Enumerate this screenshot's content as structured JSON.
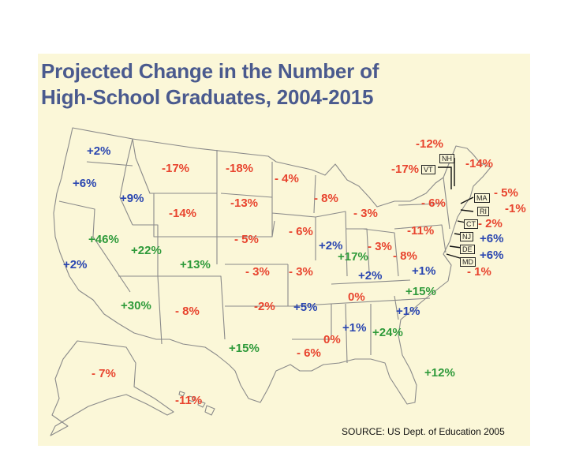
{
  "title_line1": "Projected Change in the Number of",
  "title_line2": "High-School Graduates, 2004-2015",
  "source": "SOURCE: US Dept. of Education 2005",
  "colors": {
    "background": "#fbf7d8",
    "title": "#4a5a8e",
    "decline": "#e8442e",
    "growth_green": "#2e9a3a",
    "growth_blue": "#2a46b0",
    "border": "#8a8a8a"
  },
  "states": [
    {
      "code": "WA",
      "value": "+2%"
    },
    {
      "code": "OR",
      "value": "+6%"
    },
    {
      "code": "CA",
      "value": "+2%"
    },
    {
      "code": "NV",
      "value": "+46%"
    },
    {
      "code": "ID",
      "value": "+9%"
    },
    {
      "code": "MT",
      "value": "-17%"
    },
    {
      "code": "WY",
      "value": "-14%"
    },
    {
      "code": "UT",
      "value": "+22%"
    },
    {
      "code": "CO",
      "value": "+13%"
    },
    {
      "code": "AZ",
      "value": "+30%"
    },
    {
      "code": "NM",
      "value": "- 8%"
    },
    {
      "code": "ND",
      "value": "-18%"
    },
    {
      "code": "SD",
      "value": "-13%"
    },
    {
      "code": "NE",
      "value": "- 5%"
    },
    {
      "code": "KS",
      "value": "- 3%"
    },
    {
      "code": "OK",
      "value": "-2%"
    },
    {
      "code": "TX",
      "value": "+15%"
    },
    {
      "code": "MN",
      "value": "- 4%"
    },
    {
      "code": "IA",
      "value": "- 6%"
    },
    {
      "code": "MO",
      "value": "- 3%"
    },
    {
      "code": "AR",
      "value": "+5%"
    },
    {
      "code": "LA",
      "value": "- 6%"
    },
    {
      "code": "WI",
      "value": "- 8%"
    },
    {
      "code": "IL",
      "value": "+2%"
    },
    {
      "code": "MI",
      "value": "- 3%"
    },
    {
      "code": "IN",
      "value": "+17%"
    },
    {
      "code": "OH",
      "value": "- 3%"
    },
    {
      "code": "KY",
      "value": "+2%"
    },
    {
      "code": "TN",
      "value": "0%"
    },
    {
      "code": "MS",
      "value": "0%"
    },
    {
      "code": "AL",
      "value": "+1%"
    },
    {
      "code": "GA",
      "value": "+24%"
    },
    {
      "code": "FL",
      "value": "+12%"
    },
    {
      "code": "SC",
      "value": "+1%"
    },
    {
      "code": "NC",
      "value": "+15%"
    },
    {
      "code": "VA",
      "value": "+1%"
    },
    {
      "code": "WV",
      "value": "- 8%"
    },
    {
      "code": "PA",
      "value": "-11%"
    },
    {
      "code": "NY",
      "value": "- 6%"
    },
    {
      "code": "VT",
      "value": "-17%"
    },
    {
      "code": "NH",
      "value": "-12%"
    },
    {
      "code": "ME",
      "value": "-14%"
    },
    {
      "code": "MA",
      "value": "- 5%"
    },
    {
      "code": "RI",
      "value": "-1%"
    },
    {
      "code": "CT",
      "value": "- 2%"
    },
    {
      "code": "NJ",
      "value": "+6%"
    },
    {
      "code": "DE",
      "value": "+6%"
    },
    {
      "code": "MD",
      "value": "- 1%"
    },
    {
      "code": "AK",
      "value": "- 7%"
    },
    {
      "code": "HI",
      "value": "-11%"
    }
  ],
  "callout_labels": {
    "NH": "NH",
    "VT": "VT",
    "MA": "MA",
    "RI": "RI",
    "CT": "CT",
    "NJ": "NJ",
    "DE": "DE",
    "MD": "MD"
  }
}
